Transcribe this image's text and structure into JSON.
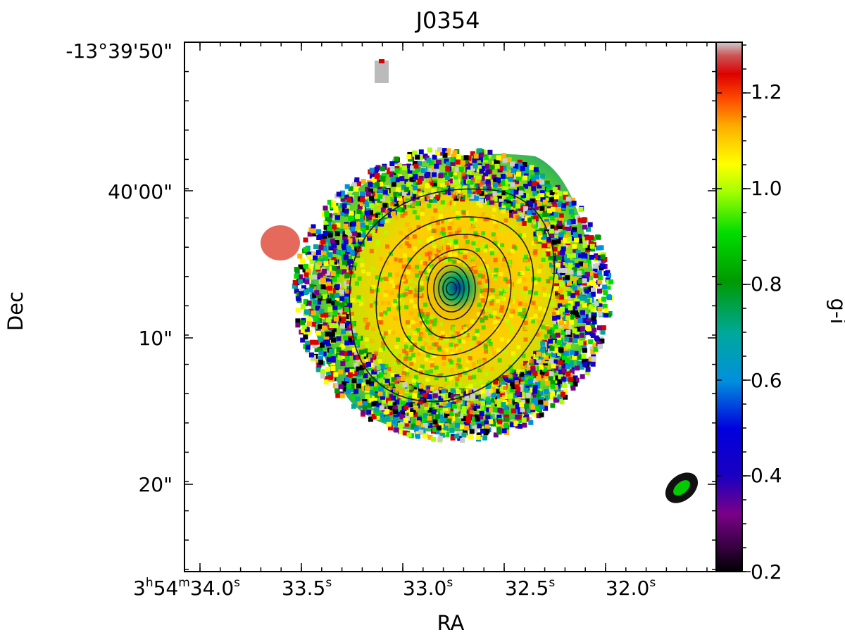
{
  "title": "J0354",
  "xlabel": "RA",
  "ylabel": "Dec",
  "colorbar": {
    "label": "g-i",
    "range": [
      0.2,
      1.3
    ],
    "ticks": [
      "0.2",
      "0.4",
      "0.6",
      "0.8",
      "1.0",
      "1.2"
    ],
    "colormap": "nipy_spectral"
  },
  "x_ticks": {
    "first": {
      "h": "3",
      "h_unit": "h",
      "m": "54",
      "m_unit": "m",
      "s": "34.0",
      "s_unit": "s"
    },
    "others": [
      {
        "s": "33.5",
        "s_unit": "s"
      },
      {
        "s": "33.0",
        "s_unit": "s"
      },
      {
        "s": "32.5",
        "s_unit": "s"
      },
      {
        "s": "32.0",
        "s_unit": "s"
      }
    ]
  },
  "y_ticks": [
    "-13°39'50\"",
    "40'00\"",
    "10\"",
    "20\""
  ],
  "colors": {
    "background": "#ffffff",
    "axes": "#000000",
    "contour": "#1a1a1a"
  }
}
